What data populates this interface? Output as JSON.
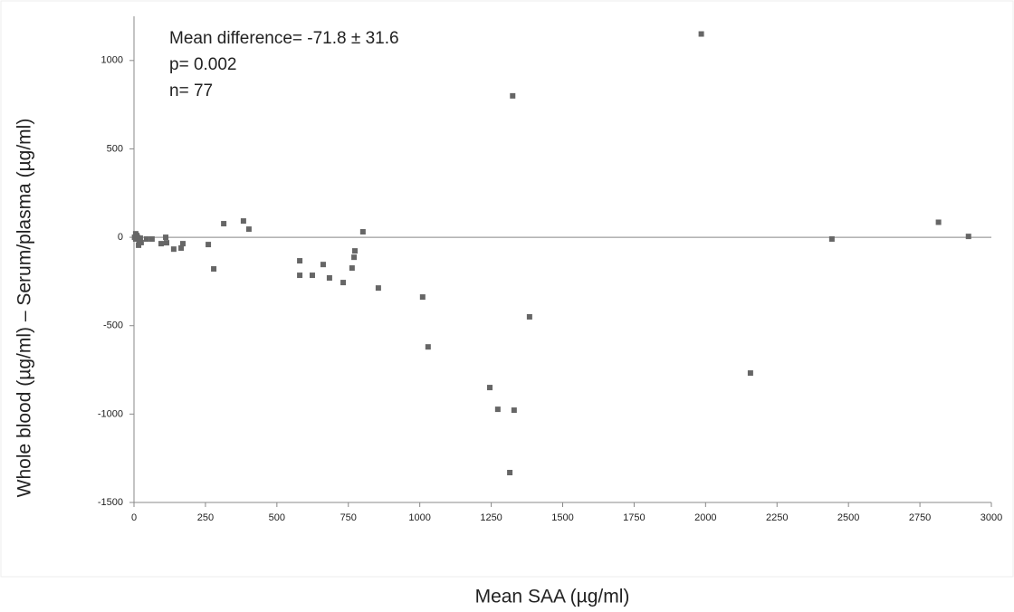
{
  "chart_data": {
    "type": "scatter",
    "annotations": [
      "Mean difference=  -71.8 ± 31.6",
      "p= 0.002",
      "n= 77"
    ],
    "x_label": "Mean SAA (µg/ml)",
    "y_label": "Whole blood (µg/ml) – Serum/plasma (µg/ml)",
    "xlim": [
      0,
      3000
    ],
    "xticks": [
      0,
      250,
      500,
      750,
      1000,
      1250,
      1500,
      1750,
      2000,
      2250,
      2500,
      2750,
      3000
    ],
    "ylim": [
      -1500,
      1250
    ],
    "yticks": [
      -1500,
      -1000,
      -500,
      0,
      500,
      1000
    ],
    "color": "#666666",
    "x": [
      1985,
      1325,
      2815,
      2920,
      2442,
      2157,
      1384,
      1315,
      1245,
      1273,
      1330,
      1029,
      1010,
      855,
      801,
      773,
      770,
      763,
      732,
      684,
      662,
      624,
      580,
      580,
      402,
      383,
      314,
      279,
      260,
      171,
      165,
      139,
      111,
      114,
      95,
      63,
      44,
      6,
      12,
      6,
      18,
      16,
      2,
      22,
      10,
      25
    ],
    "y": [
      1150,
      800,
      85,
      5,
      -10,
      -768,
      -450,
      -1331,
      -850,
      -973,
      -978,
      -620,
      -338,
      -287,
      31,
      -77,
      -113,
      -174,
      -256,
      -230,
      -154,
      -215,
      -133,
      -215,
      46,
      92,
      77,
      -179,
      -41,
      -36,
      -61,
      -67,
      0,
      -31,
      -36,
      -10,
      -10,
      20,
      0,
      -10,
      -25,
      -45,
      0,
      -5,
      10,
      -30
    ]
  }
}
